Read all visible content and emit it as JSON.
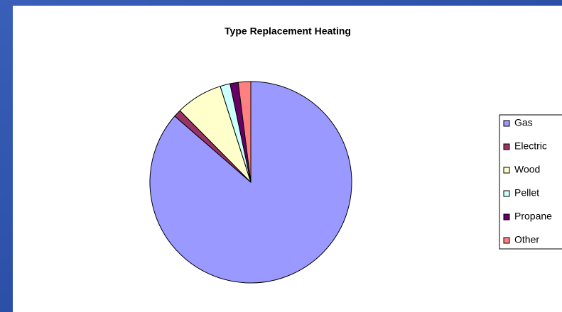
{
  "chart_data": {
    "type": "pie",
    "title": "Type Replacement Heating",
    "categories": [
      "Gas",
      "Electric",
      "Wood",
      "Pellet",
      "Propane",
      "Other"
    ],
    "values": [
      86.4,
      1.2,
      7.5,
      1.6,
      1.3,
      2.0
    ],
    "colors": [
      "#9999ff",
      "#993366",
      "#ffffcc",
      "#ccffff",
      "#660066",
      "#ff8080"
    ],
    "legend": "right"
  }
}
